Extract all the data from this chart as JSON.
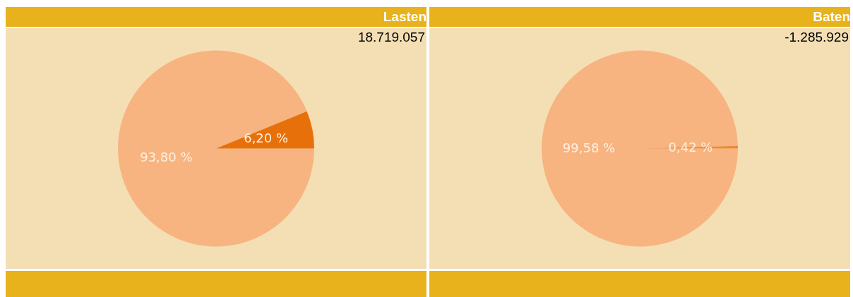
{
  "chart_data": [
    {
      "type": "pie",
      "title": "Lasten",
      "annotations": [
        "18.719.057"
      ],
      "categories": [
        null,
        null
      ],
      "values": [
        93.8,
        6.2
      ],
      "value_labels": [
        "93,80 %",
        "6,20 %"
      ],
      "colors": [
        "#f7b480",
        "#e8700a"
      ]
    },
    {
      "type": "pie",
      "title": "Baten",
      "annotations": [
        "-1.285.929"
      ],
      "categories": [
        null,
        null
      ],
      "values": [
        99.58,
        0.42
      ],
      "value_labels": [
        "99,58 %",
        "0,42 %"
      ],
      "colors": [
        "#f7b480",
        "#ee8a3a"
      ]
    }
  ]
}
